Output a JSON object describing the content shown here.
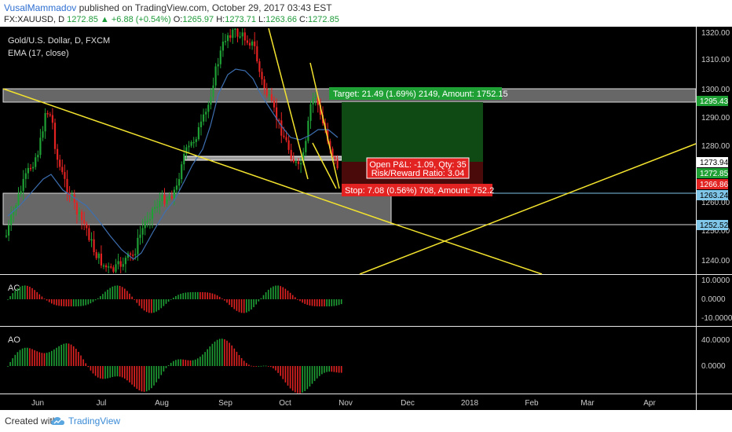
{
  "header": {
    "author": "VusalMammadov",
    "published": "published on TradingView.com, October 29, 2017 03:43 EST",
    "symbol": "FX:XAUUSD, D",
    "last": "1272.85",
    "change": "▲ +6.88 (+0.54%)",
    "open_label": "O:",
    "open": "1265.97",
    "high_label": "H:",
    "high": "1273.71",
    "low_label": "L:",
    "low": "1263.66",
    "close_label": "C:",
    "close": "1272.85"
  },
  "legend": {
    "title": "Gold/U.S. Dollar, D, FXCM",
    "indicator": "EMA (17, close)"
  },
  "colors": {
    "up": "#1fa035",
    "down": "#e32222",
    "ema": "#3d6fb0",
    "trendline": "#f2e22e",
    "zone": "#8a8a8a",
    "target_zone": "#0f4a14",
    "stop_zone": "#4a0a0a"
  },
  "trade": {
    "target_label": "Target: 21.49 (1.69%) 2149, Amount: 1752.15",
    "pnl_label": "Open P&L: -1.09, Qty: 35",
    "rr_label": "Risk/Reward Ratio: 3.04",
    "stop_label": "Stop: 7.08 (0.56%) 708, Amount: 752.2"
  },
  "price_axis": {
    "ticks": [
      "1320.00",
      "1310.00",
      "1300.00",
      "1290.00",
      "1280.00",
      "1270.00",
      "1260.00",
      "1250.00",
      "1240.00"
    ],
    "badges": [
      {
        "text": "1295.43",
        "bg": "#1fa035",
        "fg": "#ffffff"
      },
      {
        "text": "1273.94",
        "bg": "#ffffff",
        "fg": "#000000"
      },
      {
        "text": "1272.85",
        "bg": "#1fa035",
        "fg": "#ffffff"
      },
      {
        "text": "1266.86",
        "bg": "#e32222",
        "fg": "#ffffff"
      },
      {
        "text": "1263.24",
        "bg": "#7fc6e8",
        "fg": "#000000"
      },
      {
        "text": "1252.52",
        "bg": "#7fc6e8",
        "fg": "#000000"
      }
    ]
  },
  "ac_pane": {
    "label": "AC",
    "ticks": [
      "10.0000",
      "0.0000",
      "-10.0000"
    ]
  },
  "ao_pane": {
    "label": "AO",
    "ticks": [
      "40.0000",
      "0.0000"
    ]
  },
  "time_axis": [
    "Jun",
    "Jul",
    "Aug",
    "Sep",
    "Oct",
    "Nov",
    "Dec",
    "2018",
    "Feb",
    "Mar",
    "Apr"
  ],
  "footer": {
    "created": "Created with",
    "brand": "TradingView"
  },
  "chart_data": {
    "type": "candlestick",
    "title": "Gold/U.S. Dollar, D, FXCM",
    "timeframe": "daily",
    "x_range": [
      "May 2017",
      "Apr 2018"
    ],
    "ylim": [
      1232,
      1323
    ],
    "key_prices": {
      "target": 1295.43,
      "entry": 1273.94,
      "last": 1272.85,
      "stop": 1266.86,
      "support_top": 1263.24,
      "support_bottom": 1252.52
    },
    "series": [
      {
        "name": "EMA (17, close)",
        "approx_path": [
          [
            "Jun",
            1258
          ],
          [
            "Jul",
            1240
          ],
          [
            "Aug",
            1257
          ],
          [
            "Sep",
            1300
          ],
          [
            "Oct",
            1282
          ],
          [
            "Late Oct",
            1276
          ]
        ]
      }
    ],
    "annotations": [
      "Target: 21.49 (1.69%) 2149, Amount: 1752.15",
      "Open P&L: -1.09, Qty: 35",
      "Risk/Reward Ratio: 3.04",
      "Stop: 7.08 (0.56%) 708, Amount: 752.2"
    ]
  }
}
